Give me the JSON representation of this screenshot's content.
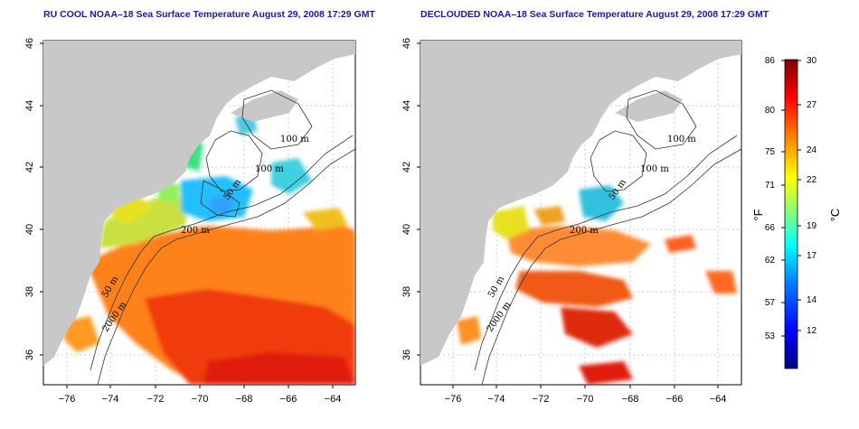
{
  "panels": [
    {
      "id": "left",
      "title": "RU COOL NOAA–18 Sea Surface Temperature August 29, 2008 17:29 GMT"
    },
    {
      "id": "right",
      "title": "DECLOUDED NOAA–18 Sea Surface Temperature August 29, 2008 17:29 GMT"
    }
  ],
  "axes": {
    "lon_ticks": [
      "−76",
      "−74",
      "−72",
      "−70",
      "−68",
      "−66",
      "−64"
    ],
    "lat_ticks": [
      "36",
      "38",
      "40",
      "42",
      "44",
      "46"
    ],
    "lon_range": [
      -77,
      -63
    ],
    "lat_range": [
      35,
      46
    ]
  },
  "contour_labels": [
    "100 m",
    "100 m",
    "50 m",
    "200 m",
    "50 m",
    "2000 m"
  ],
  "colorbar": {
    "fahrenheit_ticks": [
      "86",
      "80",
      "75",
      "71",
      "66",
      "62",
      "57",
      "53"
    ],
    "celsius_ticks": [
      "30",
      "27",
      "24",
      "22",
      "19",
      "17",
      "14",
      "12"
    ],
    "fahrenheit_unit": "°F",
    "celsius_unit": "°C",
    "colors": [
      "#00007f",
      "#0000ff",
      "#0080ff",
      "#00ffff",
      "#80ff80",
      "#ffff00",
      "#ff8000",
      "#ff0000",
      "#7f0000"
    ]
  },
  "colors": {
    "land": "#c8c8c8",
    "title": "#1a1aa6"
  }
}
